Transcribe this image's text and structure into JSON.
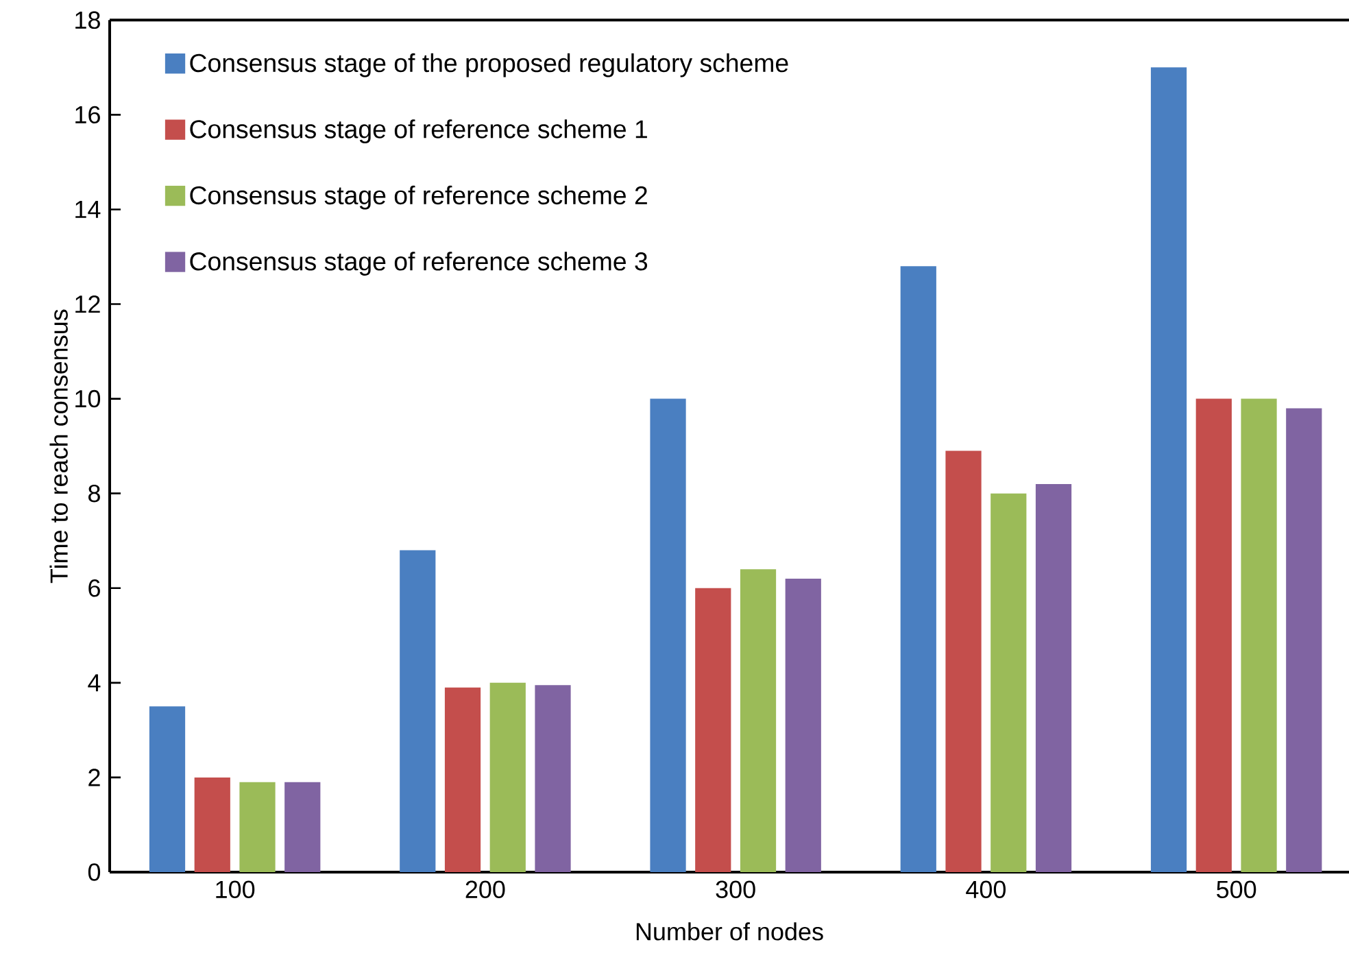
{
  "chart_data": {
    "type": "bar",
    "xlabel": "Number of nodes",
    "ylabel": "Time to reach consensus",
    "categories": [
      "100",
      "200",
      "300",
      "400",
      "500"
    ],
    "series": [
      {
        "name": "Consensus stage of the proposed regulatory scheme",
        "color": "#4a7fc1",
        "values": [
          3.5,
          6.8,
          10,
          12.8,
          17
        ]
      },
      {
        "name": "Consensus stage of reference scheme 1",
        "color": "#c44e4c",
        "values": [
          2.0,
          3.9,
          6.0,
          8.9,
          10
        ]
      },
      {
        "name": "Consensus stage of reference scheme 2",
        "color": "#9bbb58",
        "values": [
          1.9,
          4.0,
          6.4,
          8.0,
          10
        ]
      },
      {
        "name": "Consensus stage of reference scheme 3",
        "color": "#8064a2",
        "values": [
          1.9,
          3.95,
          6.2,
          8.2,
          9.8
        ]
      }
    ],
    "ylim": [
      0,
      18
    ],
    "yticks": [
      0,
      2,
      4,
      6,
      8,
      10,
      12,
      14,
      16,
      18
    ],
    "legend": "top left"
  }
}
